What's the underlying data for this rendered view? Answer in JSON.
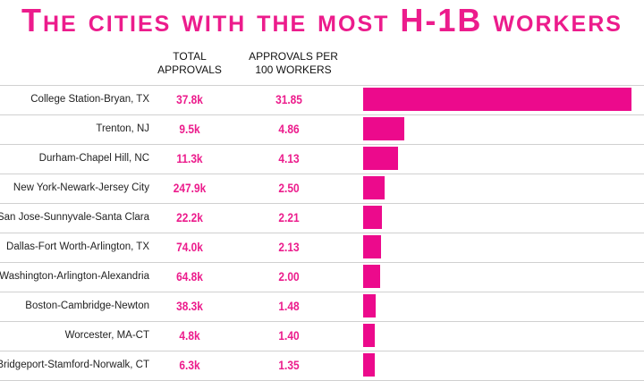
{
  "chart_data": {
    "type": "bar",
    "title": "The cities with the most H-1B workers",
    "categories": [
      "College Station-Bryan, TX",
      "Trenton, NJ",
      "Durham-Chapel Hill, NC",
      "New York-Newark-Jersey City",
      "San Jose-Sunnyvale-Santa Clara",
      "Dallas-Fort Worth-Arlington, TX",
      "Washington-Arlington-Alexandria",
      "Boston-Cambridge-Newton",
      "Worcester, MA-CT",
      "Bridgeport-Stamford-Norwalk, CT"
    ],
    "series": [
      {
        "name": "TOTAL APPROVALS",
        "values": [
          37800,
          9500,
          11300,
          247900,
          22200,
          74000,
          64800,
          38300,
          4800,
          6300
        ],
        "value_labels": [
          "37.8k",
          "9.5k",
          "11.3k",
          "247.9k",
          "22.2k",
          "74.0k",
          "64.8k",
          "38.3k",
          "4.8k",
          "6.3k"
        ]
      },
      {
        "name": "APPROVALS PER 100 WORKERS",
        "color": "#ec0a8c",
        "values": [
          31.85,
          4.86,
          4.13,
          2.5,
          2.21,
          2.13,
          2.0,
          1.48,
          1.4,
          1.35
        ],
        "value_labels": [
          "31.85",
          "4.86",
          "4.13",
          "2.50",
          "2.21",
          "2.13",
          "2.00",
          "1.48",
          "1.40",
          "1.35"
        ]
      }
    ]
  }
}
